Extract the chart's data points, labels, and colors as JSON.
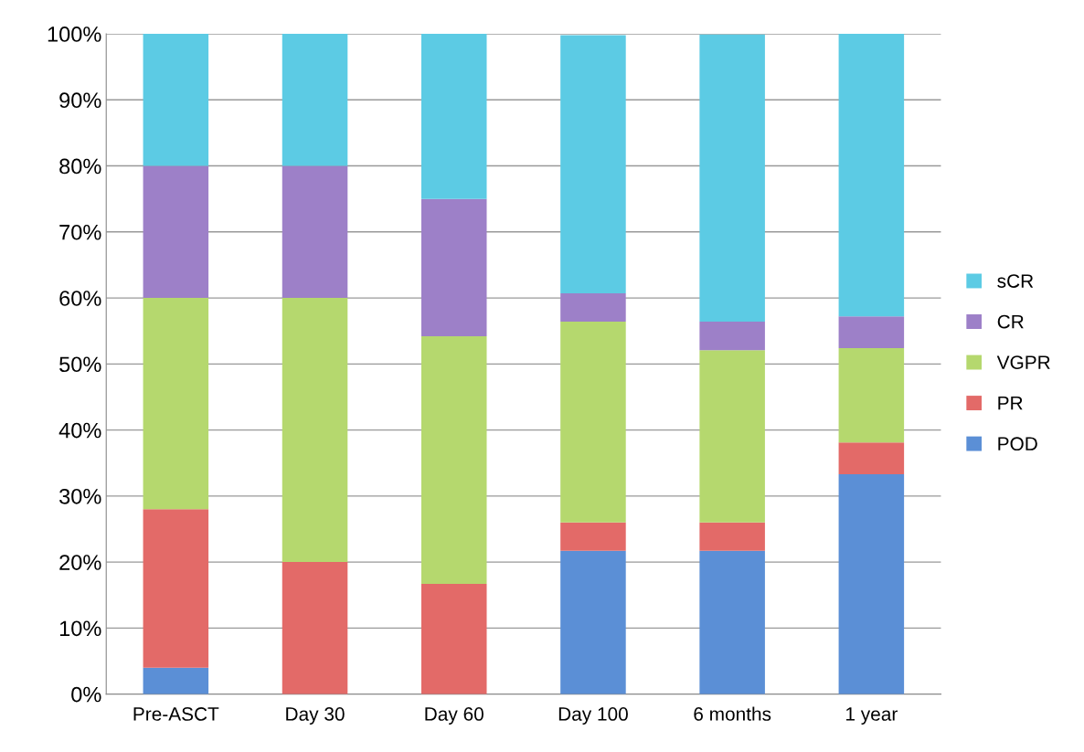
{
  "chart_data": {
    "type": "bar",
    "stacked": true,
    "categories": [
      "Pre-ASCT",
      "Day 30",
      "Day 60",
      "Day 100",
      "6 months",
      "1 year"
    ],
    "series": [
      {
        "name": "POD",
        "color": "#5b8fd6",
        "values": [
          4,
          0,
          0,
          21.7,
          21.7,
          33.3
        ]
      },
      {
        "name": "PR",
        "color": "#e36a68",
        "values": [
          24,
          20,
          16.7,
          4.3,
          4.3,
          4.8
        ]
      },
      {
        "name": "VGPR",
        "color": "#b5d86e",
        "values": [
          32,
          40,
          37.5,
          30.4,
          26.1,
          14.3
        ]
      },
      {
        "name": "CR",
        "color": "#9d80c8",
        "values": [
          20,
          20,
          20.8,
          4.3,
          4.3,
          4.8
        ]
      },
      {
        "name": "sCR",
        "color": "#5ccbe4",
        "values": [
          20,
          20,
          25,
          39.1,
          43.5,
          42.9
        ]
      }
    ],
    "ylim": [
      0,
      100
    ],
    "yticks": [
      {
        "value": 0,
        "label": "0%"
      },
      {
        "value": 10,
        "label": "10%"
      },
      {
        "value": 20,
        "label": "20%"
      },
      {
        "value": 30,
        "label": "30%"
      },
      {
        "value": 40,
        "label": "40%"
      },
      {
        "value": 50,
        "label": "50%"
      },
      {
        "value": 60,
        "label": "60%"
      },
      {
        "value": 70,
        "label": "70%"
      },
      {
        "value": 80,
        "label": "80%"
      },
      {
        "value": 90,
        "label": "90%"
      },
      {
        "value": 100,
        "label": "100%"
      }
    ],
    "grid": "y",
    "legend": "right"
  }
}
